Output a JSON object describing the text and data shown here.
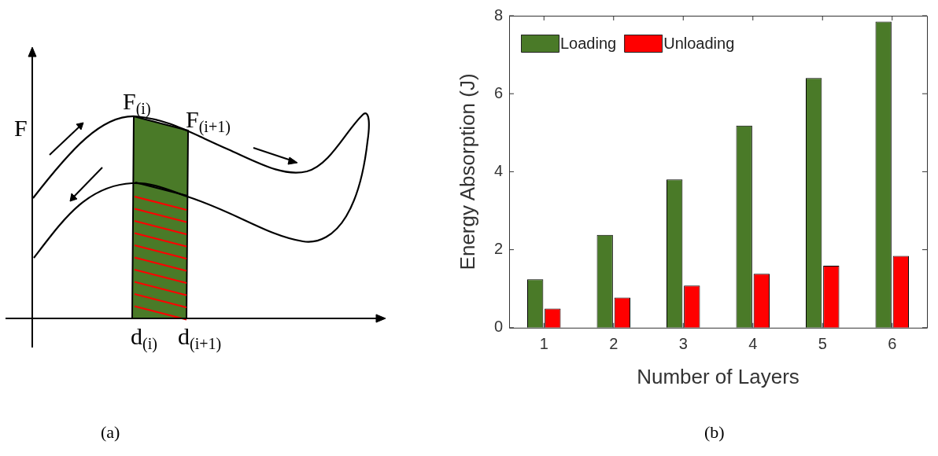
{
  "chart_data": [
    {
      "type": "other",
      "annotations": [
        "F",
        "F$_{(i)}$",
        "F$_{(i+1)}$",
        "d$_{(i)}$",
        "d$_{(i+1)}$",
        "(a)"
      ]
    },
    {
      "type": "bar",
      "categories": [
        "1",
        "2",
        "3",
        "4",
        "5",
        "6"
      ],
      "xlabel": "Number of Layers",
      "ylabel": "Energy Absorption (J)",
      "series": [
        {
          "name": "Loading",
          "color": "#4a7a28",
          "values": [
            1.24,
            2.38,
            3.8,
            5.18,
            6.4,
            7.85
          ]
        },
        {
          "name": "Unloading",
          "color": "#ff0000",
          "values": [
            0.49,
            0.77,
            1.08,
            1.38,
            1.59,
            1.84
          ]
        }
      ],
      "ylim": [
        0,
        8
      ],
      "yticks": [
        0,
        2,
        4,
        6,
        8
      ],
      "grid": false,
      "legend": "top left",
      "annotations": [
        "(b)"
      ]
    }
  ]
}
